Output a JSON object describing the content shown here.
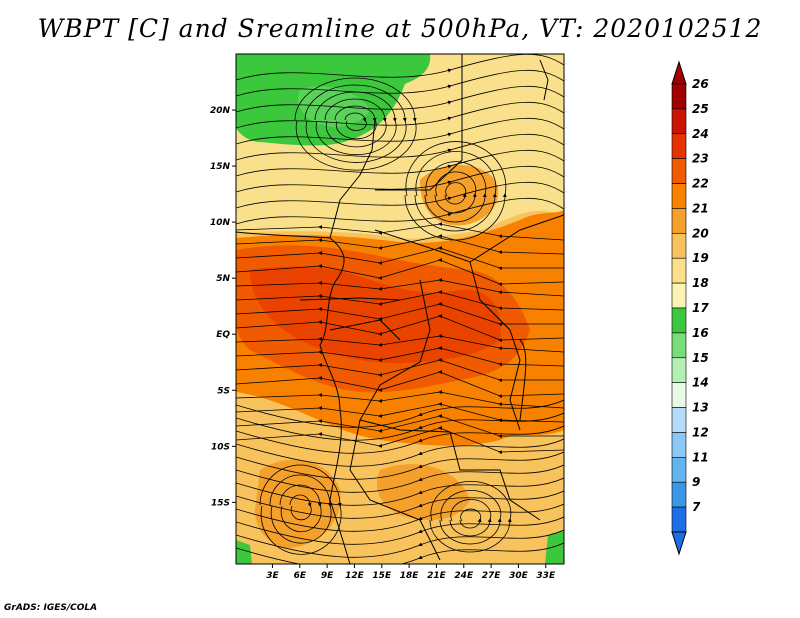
{
  "title": "WBPT [C] and Sreamline at 500hPa, VT: 2020102512",
  "credit": "GrADS: IGES/COLA",
  "map": {
    "lon_range": [
      -1,
      35
    ],
    "lat_range": [
      -20.5,
      25
    ],
    "x_ticks": [
      {
        "lon": 3,
        "label": "3E"
      },
      {
        "lon": 6,
        "label": "6E"
      },
      {
        "lon": 9,
        "label": "9E"
      },
      {
        "lon": 12,
        "label": "12E"
      },
      {
        "lon": 15,
        "label": "15E"
      },
      {
        "lon": 18,
        "label": "18E"
      },
      {
        "lon": 21,
        "label": "21E"
      },
      {
        "lon": 24,
        "label": "24E"
      },
      {
        "lon": 27,
        "label": "27E"
      },
      {
        "lon": 30,
        "label": "30E"
      },
      {
        "lon": 33,
        "label": "33E"
      }
    ],
    "y_ticks": [
      {
        "lat": 20,
        "label": "20N"
      },
      {
        "lat": 15,
        "label": "15N"
      },
      {
        "lat": 10,
        "label": "10N"
      },
      {
        "lat": 5,
        "label": "5N"
      },
      {
        "lat": 0,
        "label": "EQ"
      },
      {
        "lat": -5,
        "label": "5S"
      },
      {
        "lat": -10,
        "label": "10S"
      },
      {
        "lat": -15,
        "label": "15S"
      }
    ]
  },
  "colorbar": {
    "levels": [
      {
        "label": "26",
        "color": "#a00000"
      },
      {
        "label": "25",
        "color": "#c81400"
      },
      {
        "label": "24",
        "color": "#e63200"
      },
      {
        "label": "23",
        "color": "#f05a00"
      },
      {
        "label": "22",
        "color": "#f88200"
      },
      {
        "label": "21",
        "color": "#f5a02a"
      },
      {
        "label": "20",
        "color": "#f8c25c"
      },
      {
        "label": "19",
        "color": "#fae08a"
      },
      {
        "label": "18",
        "color": "#fbf4b4"
      },
      {
        "label": "17",
        "color": "#3cc83c"
      },
      {
        "label": "16",
        "color": "#78dc78"
      },
      {
        "label": "15",
        "color": "#b4f0b4"
      },
      {
        "label": "14",
        "color": "#e6fae6"
      },
      {
        "label": "13",
        "color": "#b4dcf8"
      },
      {
        "label": "12",
        "color": "#8cc8f5"
      },
      {
        "label": "11",
        "color": "#64b4f0"
      },
      {
        "label": "9",
        "color": "#3c96e6"
      },
      {
        "label": "7",
        "color": "#1e6ee6"
      }
    ],
    "top_color": "#a00000",
    "bottom_color": "#1e6ee6"
  }
}
